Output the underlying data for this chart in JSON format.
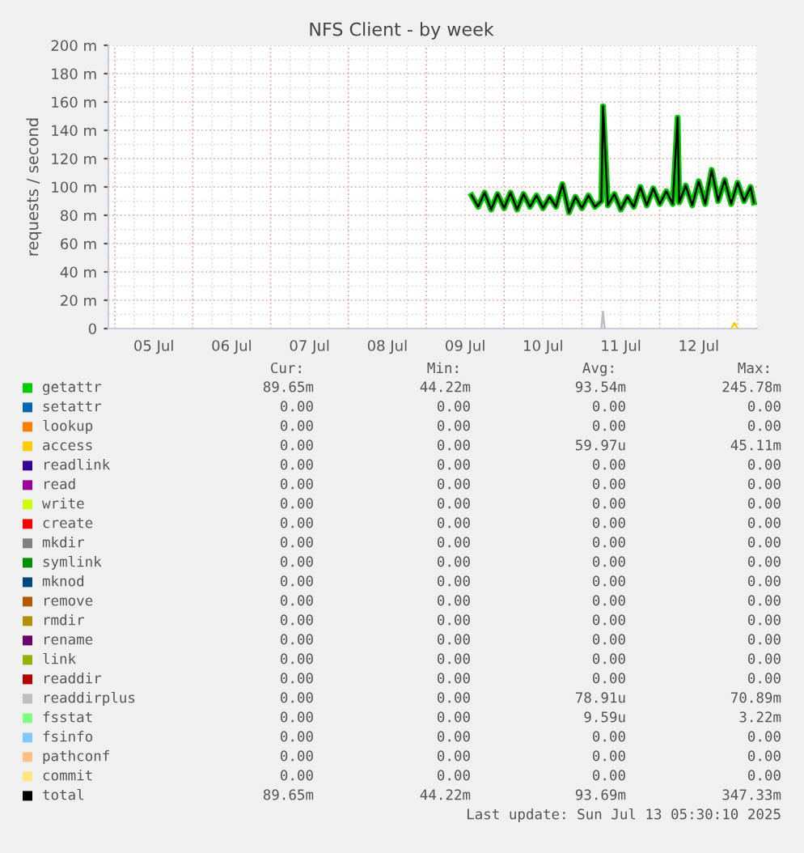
{
  "chart_data": {
    "type": "line",
    "title": "NFS Client - by week",
    "ylabel": "requests / second",
    "x": [
      "2025-07-09T14:00",
      "2025-07-09T16:00",
      "2025-07-09T18:00",
      "2025-07-09T20:00",
      "2025-07-09T22:00",
      "2025-07-10T00:00",
      "2025-07-10T02:00",
      "2025-07-10T04:00",
      "2025-07-10T06:00",
      "2025-07-10T08:00",
      "2025-07-10T10:00",
      "2025-07-10T12:00",
      "2025-07-10T14:00",
      "2025-07-10T16:00",
      "2025-07-10T18:00",
      "2025-07-10T20:00",
      "2025-07-10T22:00",
      "2025-07-11T00:00",
      "2025-07-11T02:00",
      "2025-07-11T04:00",
      "2025-07-11T06:00",
      "2025-07-11T06:30",
      "2025-07-11T08:00",
      "2025-07-11T10:00",
      "2025-07-11T12:00",
      "2025-07-11T14:00",
      "2025-07-11T16:00",
      "2025-07-11T18:00",
      "2025-07-11T20:00",
      "2025-07-11T22:00",
      "2025-07-12T00:00",
      "2025-07-12T02:00",
      "2025-07-12T04:00",
      "2025-07-12T05:30",
      "2025-07-12T06:00",
      "2025-07-12T08:00",
      "2025-07-12T10:00",
      "2025-07-12T12:00",
      "2025-07-12T14:00",
      "2025-07-12T16:00",
      "2025-07-12T18:00",
      "2025-07-12T20:00",
      "2025-07-12T22:00",
      "2025-07-13T00:00",
      "2025-07-13T02:00",
      "2025-07-13T04:00",
      "2025-07-13T05:00"
    ],
    "series": [
      {
        "name": "getattr",
        "color": "#00cc00",
        "values": [
          94,
          86,
          96,
          84,
          95,
          85,
          96,
          84,
          95,
          86,
          94,
          85,
          93,
          86,
          102,
          82,
          93,
          85,
          94,
          86,
          90,
          157,
          87,
          95,
          84,
          93,
          86,
          100,
          87,
          99,
          88,
          97,
          88,
          149,
          89,
          101,
          87,
          104,
          88,
          112,
          90,
          105,
          88,
          103,
          90,
          100,
          89
        ]
      },
      {
        "name": "setattr",
        "color": "#0066b3",
        "values": [
          null,
          null,
          null,
          null,
          null,
          null,
          null,
          null,
          null,
          null,
          null,
          null,
          null,
          null,
          null,
          null,
          null,
          null,
          null,
          null,
          null,
          null,
          null,
          null,
          null,
          null,
          null,
          null,
          null,
          null,
          null,
          null,
          null,
          null,
          null,
          null,
          null,
          null,
          null,
          null,
          null,
          null,
          null,
          null,
          null,
          null,
          null
        ]
      },
      {
        "name": "lookup",
        "color": "#ff8000",
        "values": [
          null,
          null,
          null,
          null,
          null,
          null,
          null,
          null,
          null,
          null,
          null,
          null,
          null,
          null,
          null,
          null,
          null,
          null,
          null,
          null,
          null,
          null,
          null,
          null,
          null,
          null,
          null,
          null,
          null,
          null,
          null,
          null,
          null,
          null,
          null,
          null,
          null,
          null,
          null,
          null,
          null,
          null,
          null,
          null,
          null,
          null,
          null
        ]
      },
      {
        "name": "access",
        "color": "#ffcc00",
        "x": [
          "2025-07-12T22:00",
          "2025-07-12T23:00",
          "2025-07-13T00:00"
        ],
        "values": [
          0,
          4,
          0
        ]
      },
      {
        "name": "readlink",
        "color": "#330099",
        "values": [
          null,
          null,
          null,
          null,
          null,
          null,
          null,
          null,
          null,
          null,
          null,
          null,
          null,
          null,
          null,
          null,
          null,
          null,
          null,
          null,
          null,
          null,
          null,
          null,
          null,
          null,
          null,
          null,
          null,
          null,
          null,
          null,
          null,
          null,
          null,
          null,
          null,
          null,
          null,
          null,
          null,
          null,
          null,
          null,
          null,
          null,
          null
        ]
      },
      {
        "name": "read",
        "color": "#990099",
        "values": [
          null,
          null,
          null,
          null,
          null,
          null,
          null,
          null,
          null,
          null,
          null,
          null,
          null,
          null,
          null,
          null,
          null,
          null,
          null,
          null,
          null,
          null,
          null,
          null,
          null,
          null,
          null,
          null,
          null,
          null,
          null,
          null,
          null,
          null,
          null,
          null,
          null,
          null,
          null,
          null,
          null,
          null,
          null,
          null,
          null,
          null,
          null
        ]
      },
      {
        "name": "write",
        "color": "#ccff00",
        "values": [
          null,
          null,
          null,
          null,
          null,
          null,
          null,
          null,
          null,
          null,
          null,
          null,
          null,
          null,
          null,
          null,
          null,
          null,
          null,
          null,
          null,
          null,
          null,
          null,
          null,
          null,
          null,
          null,
          null,
          null,
          null,
          null,
          null,
          null,
          null,
          null,
          null,
          null,
          null,
          null,
          null,
          null,
          null,
          null,
          null,
          null,
          null
        ]
      },
      {
        "name": "create",
        "color": "#ff0000",
        "values": [
          null,
          null,
          null,
          null,
          null,
          null,
          null,
          null,
          null,
          null,
          null,
          null,
          null,
          null,
          null,
          null,
          null,
          null,
          null,
          null,
          null,
          null,
          null,
          null,
          null,
          null,
          null,
          null,
          null,
          null,
          null,
          null,
          null,
          null,
          null,
          null,
          null,
          null,
          null,
          null,
          null,
          null,
          null,
          null,
          null,
          null,
          null
        ]
      },
      {
        "name": "mkdir",
        "color": "#808080",
        "values": [
          null,
          null,
          null,
          null,
          null,
          null,
          null,
          null,
          null,
          null,
          null,
          null,
          null,
          null,
          null,
          null,
          null,
          null,
          null,
          null,
          null,
          null,
          null,
          null,
          null,
          null,
          null,
          null,
          null,
          null,
          null,
          null,
          null,
          null,
          null,
          null,
          null,
          null,
          null,
          null,
          null,
          null,
          null,
          null,
          null,
          null,
          null
        ]
      },
      {
        "name": "symlink",
        "color": "#008f00",
        "values": [
          null,
          null,
          null,
          null,
          null,
          null,
          null,
          null,
          null,
          null,
          null,
          null,
          null,
          null,
          null,
          null,
          null,
          null,
          null,
          null,
          null,
          null,
          null,
          null,
          null,
          null,
          null,
          null,
          null,
          null,
          null,
          null,
          null,
          null,
          null,
          null,
          null,
          null,
          null,
          null,
          null,
          null,
          null,
          null,
          null,
          null,
          null
        ]
      },
      {
        "name": "mknod",
        "color": "#00487d",
        "values": [
          null,
          null,
          null,
          null,
          null,
          null,
          null,
          null,
          null,
          null,
          null,
          null,
          null,
          null,
          null,
          null,
          null,
          null,
          null,
          null,
          null,
          null,
          null,
          null,
          null,
          null,
          null,
          null,
          null,
          null,
          null,
          null,
          null,
          null,
          null,
          null,
          null,
          null,
          null,
          null,
          null,
          null,
          null,
          null,
          null,
          null,
          null
        ]
      },
      {
        "name": "remove",
        "color": "#b35a00",
        "values": [
          null,
          null,
          null,
          null,
          null,
          null,
          null,
          null,
          null,
          null,
          null,
          null,
          null,
          null,
          null,
          null,
          null,
          null,
          null,
          null,
          null,
          null,
          null,
          null,
          null,
          null,
          null,
          null,
          null,
          null,
          null,
          null,
          null,
          null,
          null,
          null,
          null,
          null,
          null,
          null,
          null,
          null,
          null,
          null,
          null,
          null,
          null
        ]
      },
      {
        "name": "rmdir",
        "color": "#b38f00",
        "values": [
          null,
          null,
          null,
          null,
          null,
          null,
          null,
          null,
          null,
          null,
          null,
          null,
          null,
          null,
          null,
          null,
          null,
          null,
          null,
          null,
          null,
          null,
          null,
          null,
          null,
          null,
          null,
          null,
          null,
          null,
          null,
          null,
          null,
          null,
          null,
          null,
          null,
          null,
          null,
          null,
          null,
          null,
          null,
          null,
          null,
          null,
          null
        ]
      },
      {
        "name": "rename",
        "color": "#6b006b",
        "values": [
          null,
          null,
          null,
          null,
          null,
          null,
          null,
          null,
          null,
          null,
          null,
          null,
          null,
          null,
          null,
          null,
          null,
          null,
          null,
          null,
          null,
          null,
          null,
          null,
          null,
          null,
          null,
          null,
          null,
          null,
          null,
          null,
          null,
          null,
          null,
          null,
          null,
          null,
          null,
          null,
          null,
          null,
          null,
          null,
          null,
          null,
          null
        ]
      },
      {
        "name": "link",
        "color": "#8fb300",
        "values": [
          null,
          null,
          null,
          null,
          null,
          null,
          null,
          null,
          null,
          null,
          null,
          null,
          null,
          null,
          null,
          null,
          null,
          null,
          null,
          null,
          null,
          null,
          null,
          null,
          null,
          null,
          null,
          null,
          null,
          null,
          null,
          null,
          null,
          null,
          null,
          null,
          null,
          null,
          null,
          null,
          null,
          null,
          null,
          null,
          null,
          null,
          null
        ]
      },
      {
        "name": "readdir",
        "color": "#b30000",
        "values": [
          null,
          null,
          null,
          null,
          null,
          null,
          null,
          null,
          null,
          null,
          null,
          null,
          null,
          null,
          null,
          null,
          null,
          null,
          null,
          null,
          null,
          null,
          null,
          null,
          null,
          null,
          null,
          null,
          null,
          null,
          null,
          null,
          null,
          null,
          null,
          null,
          null,
          null,
          null,
          null,
          null,
          null,
          null,
          null,
          null,
          null,
          null
        ]
      },
      {
        "name": "readdirplus",
        "color": "#bebebe",
        "x": [
          "2025-07-11T06:00",
          "2025-07-11T06:30",
          "2025-07-11T07:00"
        ],
        "values": [
          0,
          12,
          0
        ]
      },
      {
        "name": "fsstat",
        "color": "#80ff80",
        "values": [
          null,
          null,
          null,
          null,
          null,
          null,
          null,
          null,
          null,
          null,
          null,
          null,
          null,
          null,
          null,
          null,
          null,
          null,
          null,
          null,
          null,
          null,
          null,
          null,
          null,
          null,
          null,
          null,
          null,
          null,
          null,
          null,
          null,
          null,
          null,
          null,
          null,
          null,
          null,
          null,
          null,
          null,
          null,
          null,
          null,
          null,
          null
        ]
      },
      {
        "name": "fsinfo",
        "color": "#80c9ff",
        "values": [
          null,
          null,
          null,
          null,
          null,
          null,
          null,
          null,
          null,
          null,
          null,
          null,
          null,
          null,
          null,
          null,
          null,
          null,
          null,
          null,
          null,
          null,
          null,
          null,
          null,
          null,
          null,
          null,
          null,
          null,
          null,
          null,
          null,
          null,
          null,
          null,
          null,
          null,
          null,
          null,
          null,
          null,
          null,
          null,
          null,
          null,
          null
        ]
      },
      {
        "name": "pathconf",
        "color": "#ffc080",
        "values": [
          null,
          null,
          null,
          null,
          null,
          null,
          null,
          null,
          null,
          null,
          null,
          null,
          null,
          null,
          null,
          null,
          null,
          null,
          null,
          null,
          null,
          null,
          null,
          null,
          null,
          null,
          null,
          null,
          null,
          null,
          null,
          null,
          null,
          null,
          null,
          null,
          null,
          null,
          null,
          null,
          null,
          null,
          null,
          null,
          null,
          null,
          null
        ]
      },
      {
        "name": "commit",
        "color": "#ffe680",
        "values": [
          null,
          null,
          null,
          null,
          null,
          null,
          null,
          null,
          null,
          null,
          null,
          null,
          null,
          null,
          null,
          null,
          null,
          null,
          null,
          null,
          null,
          null,
          null,
          null,
          null,
          null,
          null,
          null,
          null,
          null,
          null,
          null,
          null,
          null,
          null,
          null,
          null,
          null,
          null,
          null,
          null,
          null,
          null,
          null,
          null,
          null,
          null
        ]
      },
      {
        "name": "total",
        "color": "#000000",
        "values": [
          94,
          86,
          96,
          84,
          95,
          85,
          96,
          84,
          95,
          86,
          94,
          85,
          93,
          86,
          102,
          82,
          93,
          85,
          94,
          86,
          90,
          157,
          87,
          95,
          84,
          93,
          86,
          100,
          87,
          99,
          88,
          97,
          88,
          149,
          89,
          101,
          87,
          104,
          88,
          112,
          90,
          105,
          88,
          103,
          90,
          100,
          89
        ]
      }
    ],
    "xlim": [
      "2025-07-04T22:00",
      "2025-07-13T06:00"
    ],
    "xticks": [
      {
        "value": "2025-07-05T12:00",
        "label": "05 Jul"
      },
      {
        "value": "2025-07-06T12:00",
        "label": "06 Jul"
      },
      {
        "value": "2025-07-07T12:00",
        "label": "07 Jul"
      },
      {
        "value": "2025-07-08T12:00",
        "label": "08 Jul"
      },
      {
        "value": "2025-07-09T12:00",
        "label": "09 Jul"
      },
      {
        "value": "2025-07-10T12:00",
        "label": "10 Jul"
      },
      {
        "value": "2025-07-11T12:00",
        "label": "11 Jul"
      },
      {
        "value": "2025-07-12T12:00",
        "label": "12 Jul"
      }
    ],
    "ylim": [
      0,
      200
    ],
    "yticks": [
      0,
      {
        "value": 20,
        "label": "20 m"
      },
      {
        "value": 40,
        "label": "40 m"
      },
      {
        "value": 60,
        "label": "60 m"
      },
      {
        "value": 80,
        "label": "80 m"
      },
      {
        "value": 100,
        "label": "100 m"
      },
      {
        "value": 120,
        "label": "120 m"
      },
      {
        "value": 140,
        "label": "140 m"
      },
      {
        "value": 160,
        "label": "160 m"
      },
      {
        "value": 180,
        "label": "180 m"
      },
      {
        "value": 200,
        "label": "200 m"
      }
    ],
    "grid": true,
    "legend": "bottom",
    "annotations": [
      "Cur:",
      "Min:",
      "Avg:",
      "Max:",
      "89.65m",
      "44.22m",
      "93.54m",
      "245.78m",
      "0.00",
      "0.00",
      "0.00",
      "0.00",
      "0.00",
      "0.00",
      "0.00",
      "0.00",
      "0.00",
      "0.00",
      "59.97u",
      "45.11m",
      "0.00",
      "0.00",
      "0.00",
      "0.00",
      "0.00",
      "0.00",
      "0.00",
      "0.00",
      "0.00",
      "0.00",
      "0.00",
      "0.00",
      "0.00",
      "0.00",
      "0.00",
      "0.00",
      "0.00",
      "0.00",
      "0.00",
      "0.00",
      "0.00",
      "0.00",
      "0.00",
      "0.00",
      "0.00",
      "0.00",
      "0.00",
      "0.00",
      "0.00",
      "0.00",
      "0.00",
      "0.00",
      "0.00",
      "0.00",
      "0.00",
      "0.00",
      "0.00",
      "0.00",
      "0.00",
      "0.00",
      "0.00",
      "0.00",
      "0.00",
      "0.00",
      "0.00",
      "0.00",
      "0.00",
      "0.00",
      "0.00",
      "0.00",
      "78.91u",
      "70.89m",
      "0.00",
      "0.00",
      "9.59u",
      "3.22m",
      "0.00",
      "0.00",
      "0.00",
      "0.00",
      "0.00",
      "0.00",
      "0.00",
      "0.00",
      "0.00",
      "0.00",
      "0.00",
      "0.00",
      "89.65m",
      "44.22m",
      "93.69m",
      "347.33m",
      "Last update: Sun Jul 13 05:30:10 2025"
    ]
  }
}
